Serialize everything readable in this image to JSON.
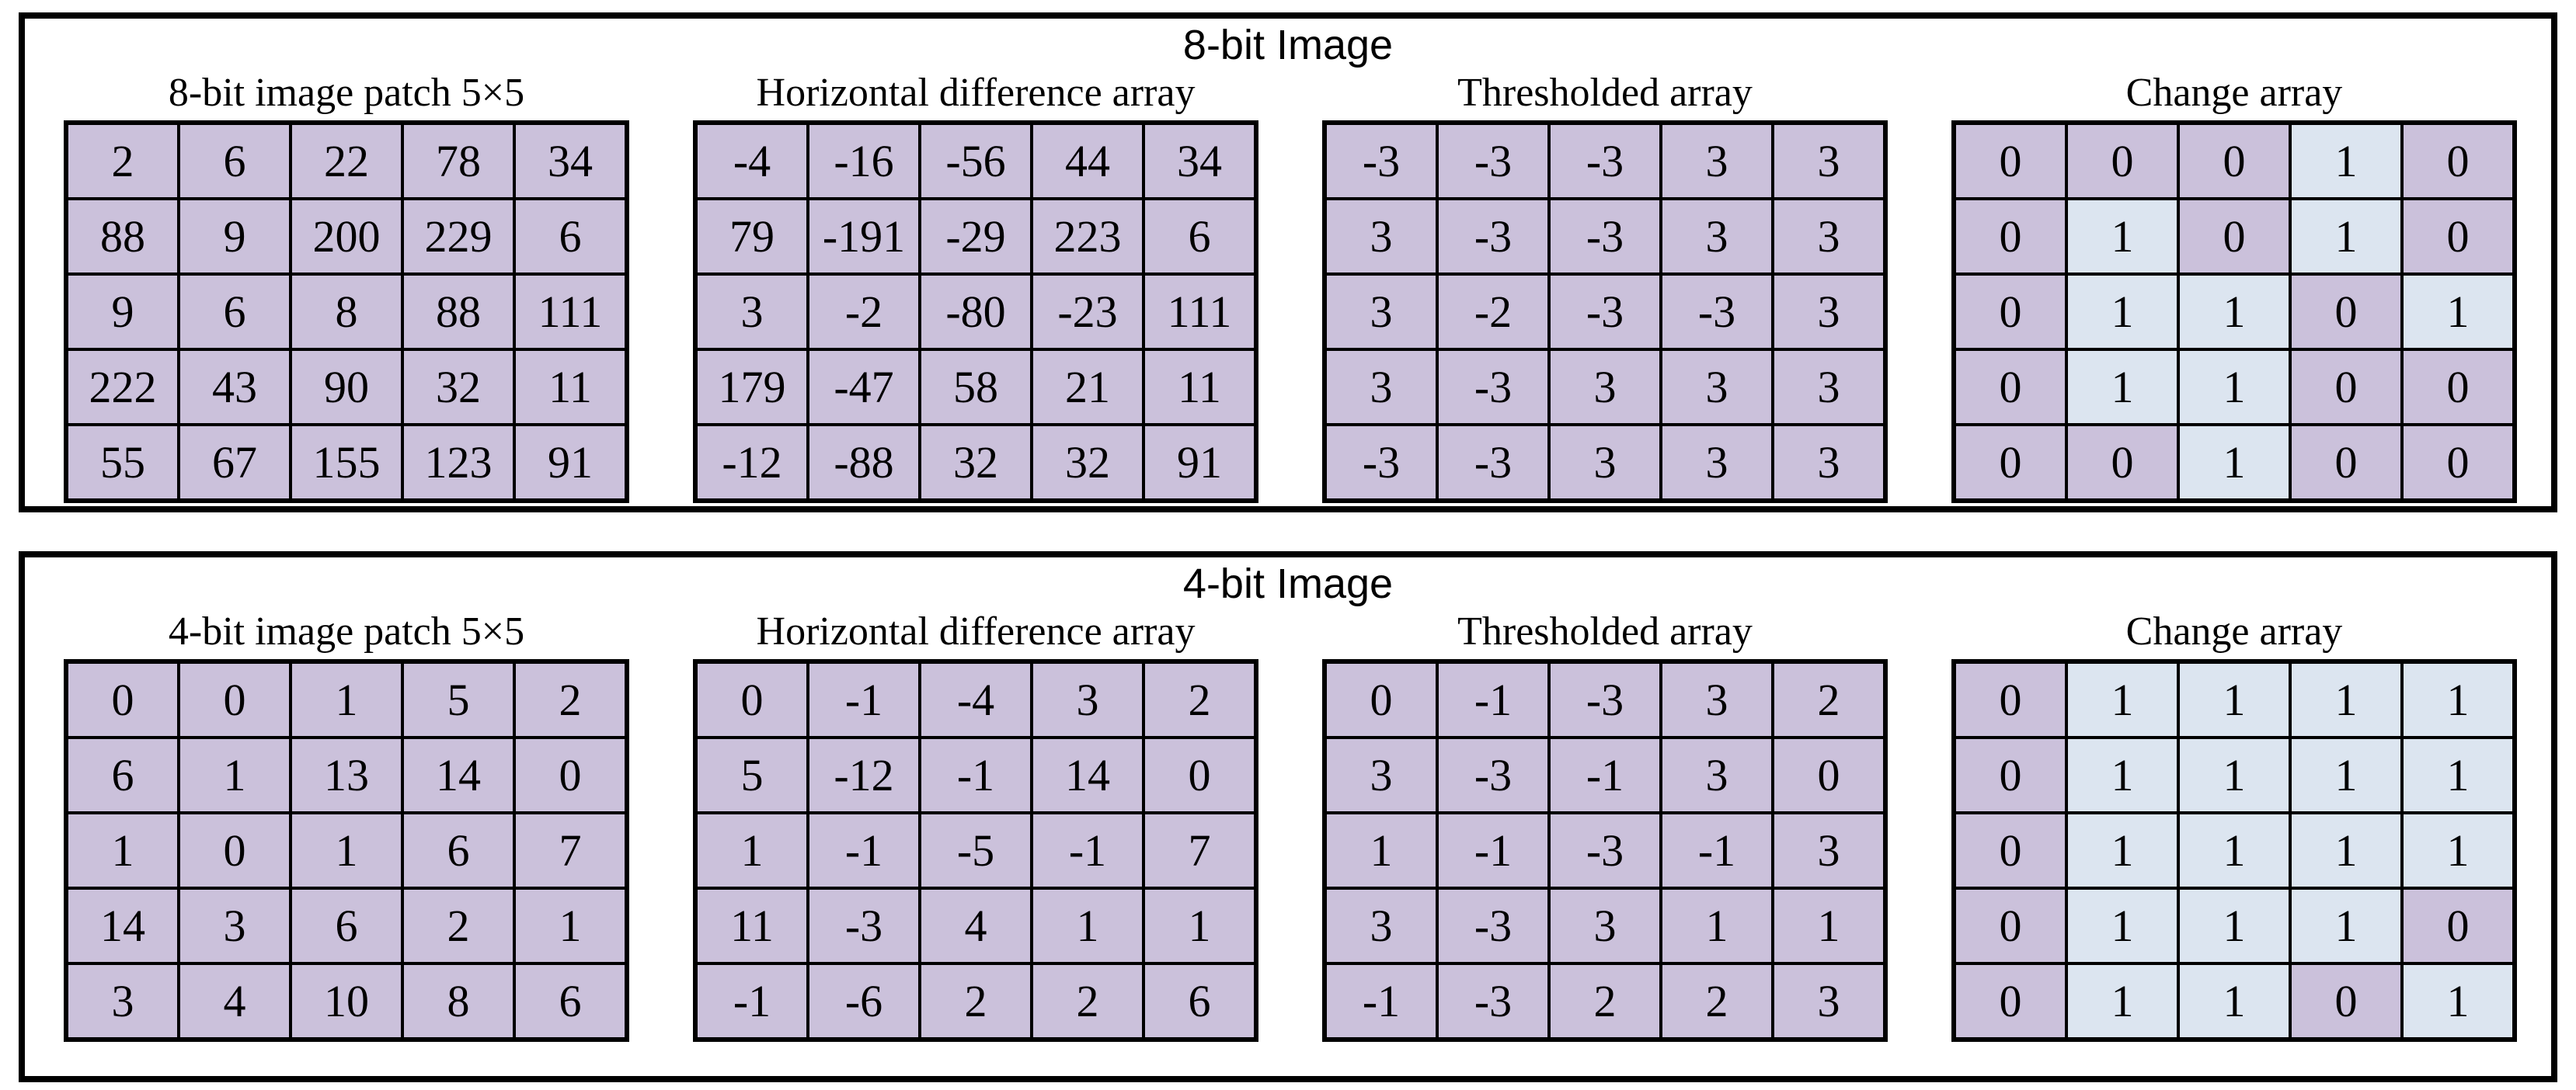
{
  "colors": {
    "cell_default": "#cbc1db",
    "cell_change_one": "#dce5f0",
    "border": "#000000",
    "background": "#ffffff"
  },
  "panels": [
    {
      "id": "8bit",
      "title": "8-bit Image",
      "grids": [
        {
          "id": "patch",
          "header": "8-bit image patch 5×5",
          "rows": [
            [
              "2",
              "6",
              "22",
              "78",
              "34"
            ],
            [
              "88",
              "9",
              "200",
              "229",
              "6"
            ],
            [
              "9",
              "6",
              "8",
              "88",
              "111"
            ],
            [
              "222",
              "43",
              "90",
              "32",
              "11"
            ],
            [
              "55",
              "67",
              "155",
              "123",
              "91"
            ]
          ]
        },
        {
          "id": "hdiff",
          "header": "Horizontal difference array",
          "rows": [
            [
              "-4",
              "-16",
              "-56",
              "44",
              "34"
            ],
            [
              "79",
              "-191",
              "-29",
              "223",
              "6"
            ],
            [
              "3",
              "-2",
              "-80",
              "-23",
              "111"
            ],
            [
              "179",
              "-47",
              "58",
              "21",
              "11"
            ],
            [
              "-12",
              "-88",
              "32",
              "32",
              "91"
            ]
          ]
        },
        {
          "id": "thresh",
          "header": "Thresholded array",
          "rows": [
            [
              "-3",
              "-3",
              "-3",
              "3",
              "3"
            ],
            [
              "3",
              "-3",
              "-3",
              "3",
              "3"
            ],
            [
              "3",
              "-2",
              "-3",
              "-3",
              "3"
            ],
            [
              "3",
              "-3",
              "3",
              "3",
              "3"
            ],
            [
              "-3",
              "-3",
              "3",
              "3",
              "3"
            ]
          ]
        },
        {
          "id": "change",
          "header": "Change array",
          "color_by_value": true,
          "value_colors": {
            "0": "#cbc1db",
            "1": "#dce5f0"
          },
          "rows": [
            [
              "0",
              "0",
              "0",
              "1",
              "0"
            ],
            [
              "0",
              "1",
              "0",
              "1",
              "0"
            ],
            [
              "0",
              "1",
              "1",
              "0",
              "1"
            ],
            [
              "0",
              "1",
              "1",
              "0",
              "0"
            ],
            [
              "0",
              "0",
              "1",
              "0",
              "0"
            ]
          ]
        }
      ]
    },
    {
      "id": "4bit",
      "title": "4-bit Image",
      "grids": [
        {
          "id": "patch",
          "header": "4-bit image patch 5×5",
          "rows": [
            [
              "0",
              "0",
              "1",
              "5",
              "2"
            ],
            [
              "6",
              "1",
              "13",
              "14",
              "0"
            ],
            [
              "1",
              "0",
              "1",
              "6",
              "7"
            ],
            [
              "14",
              "3",
              "6",
              "2",
              "1"
            ],
            [
              "3",
              "4",
              "10",
              "8",
              "6"
            ]
          ]
        },
        {
          "id": "hdiff",
          "header": "Horizontal difference array",
          "rows": [
            [
              "0",
              "-1",
              "-4",
              "3",
              "2"
            ],
            [
              "5",
              "-12",
              "-1",
              "14",
              "0"
            ],
            [
              "1",
              "-1",
              "-5",
              "-1",
              "7"
            ],
            [
              "11",
              "-3",
              "4",
              "1",
              "1"
            ],
            [
              "-1",
              "-6",
              "2",
              "2",
              "6"
            ]
          ]
        },
        {
          "id": "thresh",
          "header": "Thresholded array",
          "rows": [
            [
              "0",
              "-1",
              "-3",
              "3",
              "2"
            ],
            [
              "3",
              "-3",
              "-1",
              "3",
              "0"
            ],
            [
              "1",
              "-1",
              "-3",
              "-1",
              "3"
            ],
            [
              "3",
              "-3",
              "3",
              "1",
              "1"
            ],
            [
              "-1",
              "-3",
              "2",
              "2",
              "3"
            ]
          ]
        },
        {
          "id": "change",
          "header": "Change array",
          "color_by_value": true,
          "value_colors": {
            "0": "#cbc1db",
            "1": "#dce5f0"
          },
          "rows": [
            [
              "0",
              "1",
              "1",
              "1",
              "1"
            ],
            [
              "0",
              "1",
              "1",
              "1",
              "1"
            ],
            [
              "0",
              "1",
              "1",
              "1",
              "1"
            ],
            [
              "0",
              "1",
              "1",
              "1",
              "0"
            ],
            [
              "0",
              "1",
              "1",
              "0",
              "1"
            ]
          ]
        }
      ]
    }
  ]
}
